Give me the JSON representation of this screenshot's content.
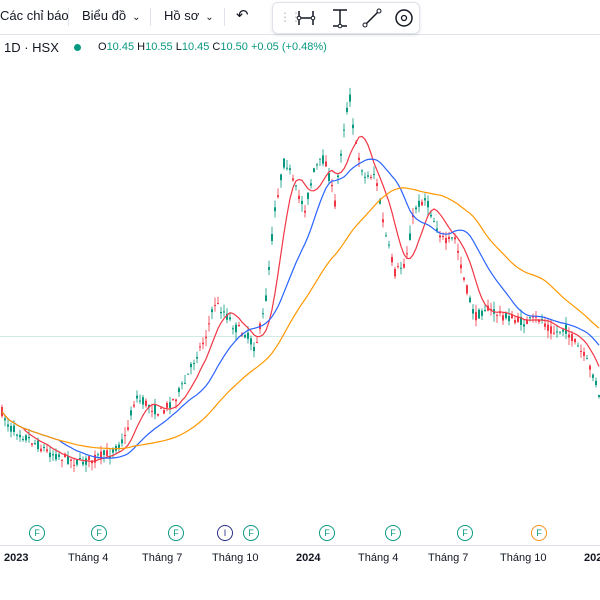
{
  "toolbar": {
    "indicators_label": "Các chỉ báo",
    "chart_type_label": "Biểu đồ",
    "profile_label": "Hồ sơ",
    "undo_icon": "undo-icon"
  },
  "drawing_tools": [
    "horizontal-range-icon",
    "vertical-range-icon",
    "trend-line-icon",
    "circle-target-icon"
  ],
  "legend": {
    "symbol": "1D · HSX",
    "open_label": "O",
    "open": "10.45",
    "high_label": "H",
    "high": "10.55",
    "low_label": "L",
    "low": "10.45",
    "close_label": "C",
    "close": "10.50",
    "change": "+0.05 (+0.48%)"
  },
  "colors": {
    "up": "#089981",
    "down": "#f23645",
    "ma_short": "#f23645",
    "ma_mid": "#2962ff",
    "ma_long": "#ff9800"
  },
  "x_axis": {
    "ticks": [
      "2023",
      "Tháng 4",
      "Tháng 7",
      "Tháng 10",
      "2024",
      "Tháng 4",
      "Tháng 7",
      "Tháng 10",
      "202"
    ]
  },
  "events": [
    {
      "label": "F",
      "kind": "dividend"
    },
    {
      "label": "F",
      "kind": "dividend"
    },
    {
      "label": "F",
      "kind": "dividend"
    },
    {
      "label": "I",
      "kind": "info"
    },
    {
      "label": "F",
      "kind": "dividend"
    },
    {
      "label": "F",
      "kind": "dividend"
    },
    {
      "label": "F",
      "kind": "dividend"
    },
    {
      "label": "F",
      "kind": "dividend"
    },
    {
      "label": "F",
      "kind": "dividend"
    }
  ]
}
